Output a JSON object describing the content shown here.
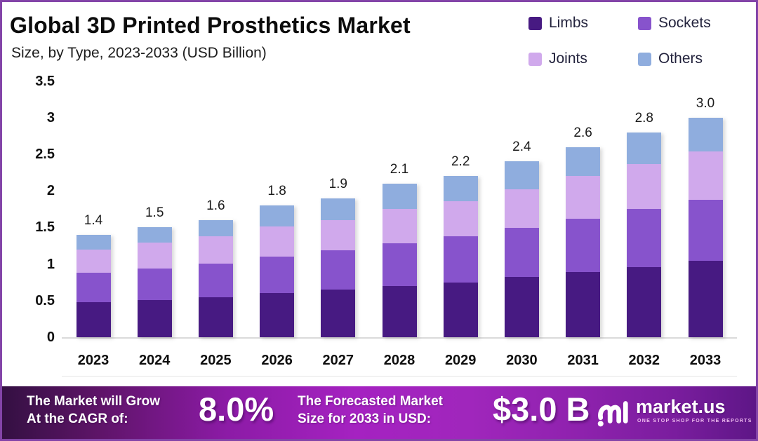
{
  "page": {
    "background": "#ffffff",
    "border_color": "#8344a8"
  },
  "header": {
    "title": "Global 3D Printed Prosthetics Market",
    "subtitle": "Size, by Type, 2023-2033 (USD Billion)"
  },
  "legend": {
    "items": [
      {
        "label": "Limbs",
        "color": "#471a82"
      },
      {
        "label": "Sockets",
        "color": "#8753cc"
      },
      {
        "label": "Joints",
        "color": "#d0a9ec"
      },
      {
        "label": "Others",
        "color": "#8fadde"
      }
    ]
  },
  "chart_data": {
    "type": "bar",
    "stacked": true,
    "title": "Global 3D Printed Prosthetics Market",
    "subtitle": "Size, by Type, 2023-2033 (USD Billion)",
    "unit": "USD Billion",
    "categories": [
      "2023",
      "2024",
      "2025",
      "2026",
      "2027",
      "2028",
      "2029",
      "2030",
      "2031",
      "2032",
      "2033"
    ],
    "series": [
      {
        "name": "Limbs",
        "color": "#471a82",
        "values": [
          0.48,
          0.51,
          0.55,
          0.6,
          0.65,
          0.7,
          0.75,
          0.82,
          0.89,
          0.96,
          1.04
        ]
      },
      {
        "name": "Sockets",
        "color": "#8753cc",
        "values": [
          0.4,
          0.43,
          0.46,
          0.5,
          0.54,
          0.58,
          0.63,
          0.67,
          0.73,
          0.79,
          0.84
        ]
      },
      {
        "name": "Joints",
        "color": "#d0a9ec",
        "values": [
          0.32,
          0.35,
          0.37,
          0.41,
          0.41,
          0.47,
          0.48,
          0.53,
          0.58,
          0.62,
          0.66
        ]
      },
      {
        "name": "Others",
        "color": "#8fadde",
        "values": [
          0.2,
          0.21,
          0.22,
          0.29,
          0.3,
          0.35,
          0.34,
          0.38,
          0.4,
          0.43,
          0.46
        ]
      }
    ],
    "totals": [
      1.4,
      1.5,
      1.6,
      1.8,
      1.9,
      2.1,
      2.2,
      2.4,
      2.6,
      2.8,
      3.0
    ],
    "total_labels": [
      "1.4",
      "1.5",
      "1.6",
      "1.8",
      "1.9",
      "2.1",
      "2.2",
      "2.4",
      "2.6",
      "2.8",
      "3.0"
    ],
    "yticks": [
      0,
      0.5,
      1,
      1.5,
      2,
      2.5,
      3,
      3.5
    ],
    "ytick_labels": [
      "0",
      "0.5",
      "1",
      "1.5",
      "2",
      "2.5",
      "3",
      "3.5"
    ],
    "ylim": [
      0,
      3.5
    ],
    "grid": false,
    "legend_position": "top-right"
  },
  "footer": {
    "cagr_label_line1": "The Market will Grow",
    "cagr_label_line2": "At the CAGR of:",
    "cagr_value": "8.0%",
    "forecast_label_line1": "The Forecasted Market",
    "forecast_label_line2": "Size for 2033 in USD:",
    "forecast_value": "$3.0 B",
    "brand_name": "market.us",
    "brand_tagline": "ONE STOP SHOP FOR THE REPORTS"
  }
}
